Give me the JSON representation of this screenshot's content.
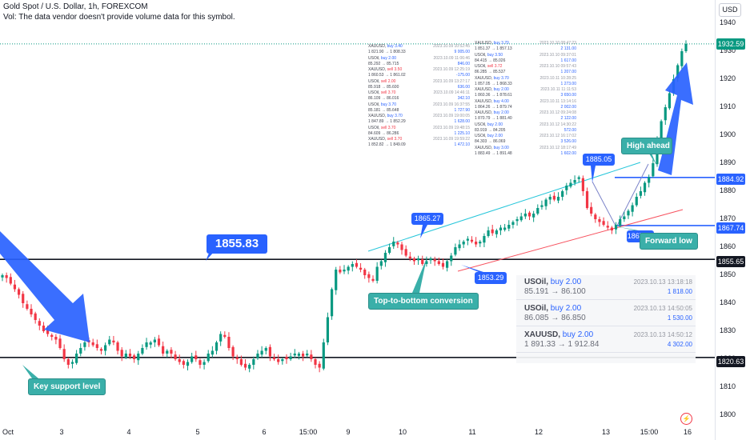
{
  "header": {
    "title": "Gold Spot / U.S. Dollar, 1h, FOREXCOM",
    "volume_note": "Vol: The data vendor doesn't provide volume data for this symbol."
  },
  "currency_button": "USD",
  "colors": {
    "up": "#089981",
    "down": "#f23645",
    "accent": "#2962ff",
    "teal": "#3aafa9",
    "channel_upper": "#26c6da",
    "channel_lower": "#f7525f"
  },
  "chart_data": {
    "type": "candlestick",
    "ylim": [
      1799,
      1942
    ],
    "y_ticks": [
      1800,
      1810,
      1820,
      1830,
      1840,
      1850,
      1860,
      1870,
      1880,
      1890,
      1900,
      1910,
      1920,
      1930,
      1940
    ],
    "x_ticks": [
      "Oct",
      "3",
      "4",
      "5",
      "6",
      "15:00",
      "9",
      "10",
      "11",
      "12",
      "13",
      "15:00",
      "16"
    ],
    "last_price": "1932.59",
    "horizontal_levels": [
      "1884.92",
      "1867.74",
      "1855.65",
      "1820.63"
    ],
    "close_path": [
      1850,
      1849,
      1847,
      1845,
      1843,
      1840,
      1838,
      1836,
      1834,
      1832,
      1830,
      1829,
      1828,
      1827,
      1824,
      1820,
      1818,
      1819,
      1822,
      1824,
      1826,
      1826,
      1825,
      1824,
      1823,
      1825,
      1827,
      1826,
      1823,
      1821,
      1822,
      1821,
      1820,
      1822,
      1824,
      1826,
      1826,
      1827,
      1825,
      1822,
      1823,
      1822,
      1820,
      1819,
      1818,
      1819,
      1821,
      1820,
      1818,
      1819,
      1822,
      1823,
      1826,
      1829,
      1828,
      1824,
      1821,
      1820,
      1818,
      1817,
      1818,
      1820,
      1822,
      1823,
      1824,
      1821,
      1820,
      1819,
      1820,
      1820,
      1821,
      1822,
      1822,
      1821,
      1822,
      1820,
      1818,
      1817,
      1826,
      1835,
      1845,
      1852,
      1851,
      1852,
      1853,
      1854,
      1853,
      1852,
      1850,
      1849,
      1848,
      1853,
      1855,
      1858,
      1860,
      1862,
      1861,
      1859,
      1857,
      1856,
      1855,
      1856,
      1854,
      1855,
      1856,
      1855,
      1854,
      1853,
      1855,
      1857,
      1860,
      1861,
      1862,
      1863,
      1862,
      1861,
      1862,
      1864,
      1866,
      1865,
      1866,
      1867,
      1867,
      1868,
      1869,
      1870,
      1871,
      1872,
      1871,
      1872,
      1874,
      1875,
      1877,
      1878,
      1877,
      1878,
      1880,
      1882,
      1883,
      1884,
      1885,
      1880,
      1874,
      1872,
      1870,
      1869,
      1868,
      1867,
      1866,
      1868,
      1870,
      1871,
      1873,
      1875,
      1878,
      1880,
      1883,
      1885,
      1890,
      1898,
      1905,
      1910,
      1915,
      1920,
      1925,
      1930,
      1932.59
    ],
    "annotations": {
      "level_label": "1855.83",
      "peak_1": "1865.27",
      "low_1": "1853.29",
      "peak_2": "1885.05",
      "low_2": "1867.74",
      "high_label": "High ahead",
      "forward_low": "Forward low",
      "conversion": "Top-to-bottom conversion",
      "support": "Key support level"
    }
  },
  "positions_panel": [
    {
      "symbol": "USOil",
      "action": "buy 2.00",
      "prices": "85.191 → 86.100",
      "time": "2023.10.13 13:18:18",
      "amount": "1 818.00"
    },
    {
      "symbol": "USOil",
      "action": "buy 2.00",
      "prices": "86.085 → 86.850",
      "time": "2023.10.13 14:50:05",
      "amount": "1 530.00"
    },
    {
      "symbol": "XAUUSD",
      "action": "buy 2.00",
      "prices": "1 891.33 → 1 912.84",
      "time": "2023.10.13 14:50:12",
      "amount": "4 302.00"
    }
  ],
  "trade_log_left": [
    {
      "sym": "XAUUSD",
      "side": "buy",
      "size": "3.40",
      "px": "1 821.90 → 1 808.33",
      "t": "2023.10.09 10:52:45",
      "amt": "9 005.00"
    },
    {
      "sym": "USOil",
      "side": "buy",
      "size": "2.00",
      "px": "85.292 → 85.715",
      "t": "2023.10.09 11:06:46",
      "amt": "846.00"
    },
    {
      "sym": "XAUUSD",
      "side": "sell",
      "size": "3.50",
      "px": "1 860.53 → 1 861.02",
      "t": "2023.10.09 12:25:19",
      "amt": "-175.00"
    },
    {
      "sym": "USOil",
      "side": "sell",
      "size": "2.00",
      "px": "85.918 → 85.600",
      "t": "2023.10.09 13:27:17",
      "amt": "636.00"
    },
    {
      "sym": "USOil",
      "side": "sell",
      "size": "3.70",
      "px": "86.109 → 86.016",
      "t": "2023.10.09 14:46:11",
      "amt": "342.10"
    },
    {
      "sym": "USOil",
      "side": "buy",
      "size": "3.70",
      "px": "85.181 → 85.648",
      "t": "2023.10.09 16:37:55",
      "amt": "1 727.90"
    },
    {
      "sym": "XAUUSD",
      "side": "buy",
      "size": "3.70",
      "px": "1 847.89 → 1 852.29",
      "t": "2023.10.09 19:00:05",
      "amt": "1 628.00"
    },
    {
      "sym": "USOil",
      "side": "sell",
      "size": "3.70",
      "px": "84.609 → 86.286",
      "t": "2023.10.09 19:48:15",
      "amt": "1 225.10"
    },
    {
      "sym": "XAUUSD",
      "side": "sell",
      "size": "3.70",
      "px": "1 852.82 → 1 849.09",
      "t": "2023.10.09 19:59:22",
      "amt": "1 472.10"
    }
  ],
  "trade_log_right": [
    {
      "sym": "XAUUSD",
      "side": "buy",
      "size": "3.70",
      "px": "1 851.37 → 1 857.13",
      "t": "2023.10.10 08:47:23",
      "amt": "2 131.00"
    },
    {
      "sym": "USOil",
      "side": "buy",
      "size": "3.50",
      "px": "84.415 → 85.026",
      "t": "2023.10.10 09:37:01",
      "amt": "1 617.00"
    },
    {
      "sym": "USOil",
      "side": "sell",
      "size": "3.72",
      "px": "86.285 → 85.537",
      "t": "2023.10.10 09:57:43",
      "amt": "1 207.00"
    },
    {
      "sym": "XAUUSD",
      "side": "buy",
      "size": "3.70",
      "px": "1 857.05 → 1 868.33",
      "t": "2023.10.11 10:28:25",
      "amt": "1 273.00"
    },
    {
      "sym": "XAUUSD",
      "side": "buy",
      "size": "2.00",
      "px": "1 860.36 → 1 878.61",
      "t": "2023.10.11 11:11:53",
      "amt": "3 650.00"
    },
    {
      "sym": "XAUUSD",
      "side": "buy",
      "size": "4.00",
      "px": "1 864.26 → 1 879.74",
      "t": "2023.10.11 13:14:16",
      "amt": "2 002.00"
    },
    {
      "sym": "XAUUSD",
      "side": "buy",
      "size": "2.00",
      "px": "1 870.79 → 1 881.40",
      "t": "2023.10.12 09:24:08",
      "amt": "2 122.00"
    },
    {
      "sym": "USOil",
      "side": "buy",
      "size": "2.00",
      "px": "83.919 → 84.205",
      "t": "2023.10.12 14:30:22",
      "amt": "572.00"
    },
    {
      "sym": "USOil",
      "side": "buy",
      "size": "2.00",
      "px": "84.303 → 86.069",
      "t": "2023.10.12 16:17:02",
      "amt": "3 526.00"
    },
    {
      "sym": "XAUUSD",
      "side": "buy",
      "size": "3.00",
      "px": "1 883.49 → 1 891.48",
      "t": "2023.10.12 18:17:49",
      "amt": "1 602.00"
    }
  ]
}
